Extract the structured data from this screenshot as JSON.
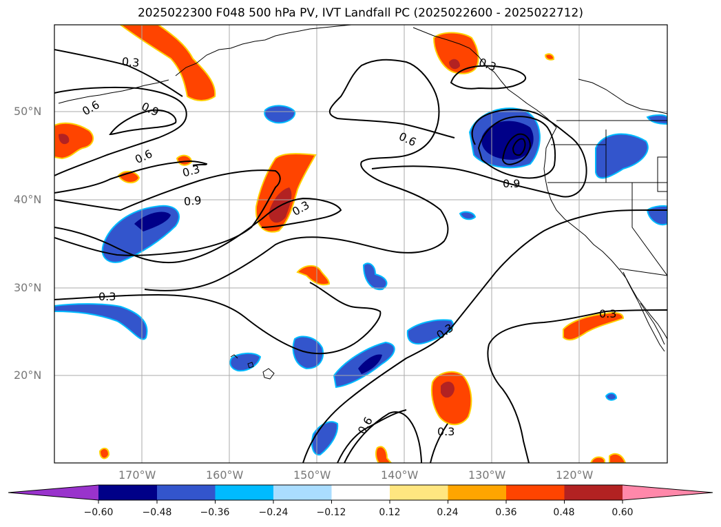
{
  "title": "2025022300 F048 500 hPa PV, IVT Landfall PC (2025022600 - 2025022712)",
  "lat_labels": [
    "50°N",
    "40°N",
    "30°N",
    "20°N"
  ],
  "lon_labels": [
    "170°W",
    "160°W",
    "150°W",
    "140°W",
    "130°W",
    "120°W"
  ],
  "contour_labels": [
    "0.3",
    "0.6",
    "0.9",
    "0.6",
    "0.3",
    "0.9",
    "0.3",
    "0.3",
    "0.6",
    "0.9",
    "0.3",
    "0.3",
    "0.6",
    "0.3",
    "0.3"
  ],
  "colorbar": {
    "ticks": [
      "−0.60",
      "−0.48",
      "−0.36",
      "−0.24",
      "−0.12",
      "0.12",
      "0.24",
      "0.36",
      "0.48",
      "0.60"
    ],
    "colors": {
      "under": "#9933cc",
      "bins": [
        "#000088",
        "#3355cc",
        "#00bbff",
        "#aaddff",
        "#ffffff",
        "#ffe680",
        "#ffa500",
        "#ff4400",
        "#b22222",
        "#ff88aa"
      ],
      "over": "#ff88aa"
    }
  },
  "colors": {
    "grid": "#aaaaaa",
    "label_gray": "#777777"
  }
}
